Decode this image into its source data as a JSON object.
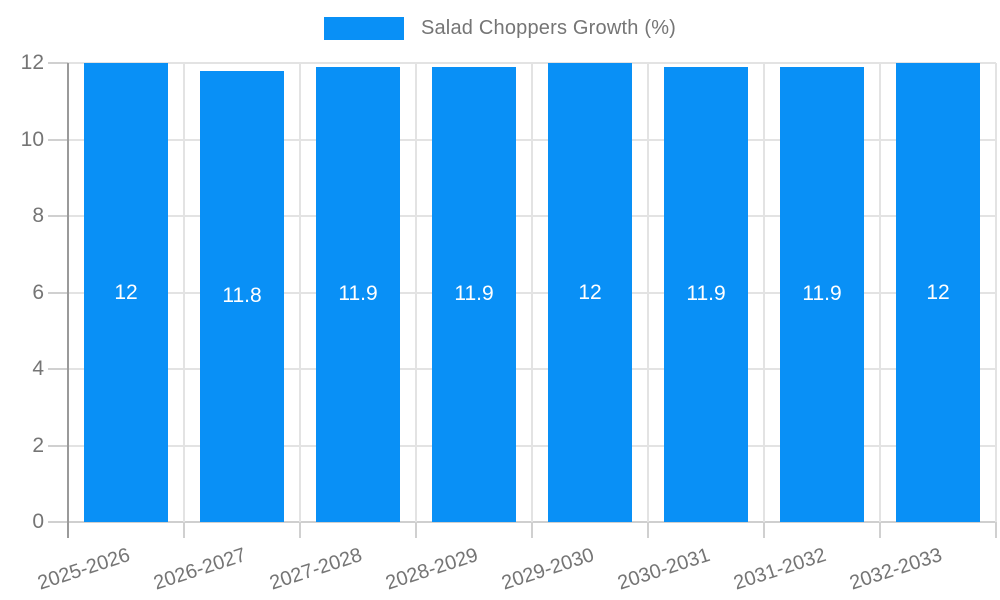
{
  "legend": {
    "label": "Salad Choppers Growth (%)"
  },
  "chart_data": {
    "type": "bar",
    "title": "Salad Choppers Growth (%)",
    "categories": [
      "2025-2026",
      "2026-2027",
      "2027-2028",
      "2028-2029",
      "2029-2030",
      "2030-2031",
      "2031-2032",
      "2032-2033"
    ],
    "series": [
      {
        "name": "Salad Choppers Growth (%)",
        "values": [
          12,
          11.8,
          11.9,
          11.9,
          12,
          11.9,
          11.9,
          12
        ]
      }
    ],
    "bar_labels": [
      "12",
      "11.8",
      "11.9",
      "11.9",
      "12",
      "11.9",
      "11.9",
      "12"
    ],
    "xlabel": "",
    "ylabel": "",
    "ylim": [
      0,
      12
    ],
    "yticks": [
      0,
      2,
      4,
      6,
      8,
      10,
      12
    ],
    "grid": true,
    "legend_position": "top-center",
    "x_tick_rotation_deg": -18,
    "colors": {
      "bar": "#0990f6",
      "bar_label": "#ffffff",
      "axis_text": "#757575",
      "gridline": "#e3e3e3",
      "axis_line": "#9a9a9a",
      "tick": "#d0d0d0"
    }
  }
}
